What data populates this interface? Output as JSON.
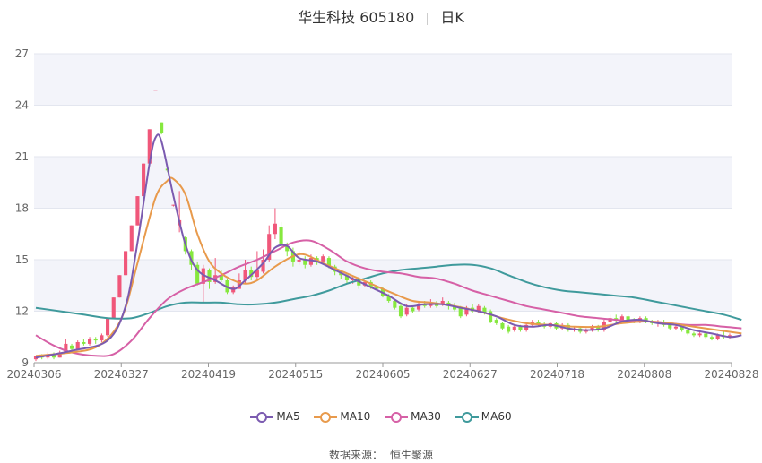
{
  "title": {
    "name": "华生科技 605180",
    "period": "日K"
  },
  "source": {
    "label": "数据来源：",
    "value": "恒生聚源"
  },
  "colors": {
    "up": "#f0577a",
    "down": "#86e83e",
    "ma5": "#7b5bb0",
    "ma10": "#e89a4c",
    "ma30": "#d660a6",
    "ma60": "#3f9a9c",
    "band": "#f3f4fa"
  },
  "chart_data": {
    "type": "candlestick",
    "ylim": [
      9,
      27
    ],
    "yticks": [
      9,
      12,
      15,
      18,
      21,
      24,
      27
    ],
    "xticks": [
      "20240306",
      "20240327",
      "20240419",
      "20240515",
      "20240605",
      "20240627",
      "20240718",
      "20240808",
      "20240828"
    ],
    "legend": [
      "MA5",
      "MA10",
      "MA30",
      "MA60"
    ],
    "candles": [
      [
        9.2,
        9.4,
        9.4,
        9.1
      ],
      [
        9.4,
        9.3,
        9.5,
        9.2
      ],
      [
        9.3,
        9.5,
        9.6,
        9.2
      ],
      [
        9.5,
        9.3,
        9.6,
        9.2
      ],
      [
        9.3,
        9.6,
        9.7,
        9.3
      ],
      [
        9.6,
        10.1,
        10.4,
        9.6
      ],
      [
        10.0,
        9.8,
        10.1,
        9.7
      ],
      [
        9.8,
        10.2,
        10.3,
        9.8
      ],
      [
        10.2,
        10.1,
        10.4,
        10.0
      ],
      [
        10.1,
        10.4,
        10.5,
        10.0
      ],
      [
        10.4,
        10.3,
        10.5,
        10.1
      ],
      [
        10.3,
        10.6,
        10.7,
        10.2
      ],
      [
        10.6,
        11.6,
        11.6,
        10.5
      ],
      [
        11.6,
        12.8,
        12.8,
        11.6
      ],
      [
        12.8,
        14.1,
        14.1,
        12.8
      ],
      [
        14.1,
        15.5,
        15.5,
        14.1
      ],
      [
        15.5,
        17.0,
        17.0,
        15.5
      ],
      [
        17.0,
        18.7,
        18.7,
        17.0
      ],
      [
        18.7,
        20.6,
        20.6,
        18.7
      ],
      [
        20.6,
        22.6,
        22.6,
        20.6
      ],
      [
        24.9,
        24.9,
        24.9,
        24.9
      ],
      [
        23.0,
        22.4,
        23.0,
        22.3
      ],
      [
        20.3,
        20.2,
        20.3,
        20.1
      ],
      [
        18.2,
        18.2,
        18.2,
        18.1
      ],
      [
        17.0,
        17.3,
        19.0,
        16.6
      ],
      [
        16.3,
        15.5,
        16.4,
        15.3
      ],
      [
        15.5,
        14.7,
        15.6,
        14.4
      ],
      [
        14.7,
        13.6,
        14.9,
        13.5
      ],
      [
        13.6,
        14.5,
        14.7,
        12.5
      ],
      [
        14.4,
        13.7,
        14.5,
        13.3
      ],
      [
        13.7,
        14.1,
        15.1,
        13.6
      ],
      [
        14.1,
        13.8,
        14.4,
        13.7
      ],
      [
        13.8,
        13.1,
        13.9,
        13.0
      ],
      [
        13.1,
        13.4,
        13.5,
        13.0
      ],
      [
        13.3,
        13.8,
        14.2,
        13.3
      ],
      [
        13.8,
        14.4,
        15.0,
        13.6
      ],
      [
        14.4,
        14.0,
        14.6,
        13.8
      ],
      [
        14.0,
        14.4,
        15.5,
        13.9
      ],
      [
        14.3,
        15.0,
        15.6,
        14.2
      ],
      [
        15.0,
        16.5,
        17.0,
        14.9
      ],
      [
        16.5,
        17.1,
        18.0,
        16.2
      ],
      [
        16.9,
        15.9,
        17.2,
        15.6
      ],
      [
        15.8,
        15.5,
        16.0,
        15.2
      ],
      [
        15.5,
        14.9,
        15.7,
        14.6
      ],
      [
        14.9,
        15.0,
        15.5,
        14.7
      ],
      [
        15.0,
        14.7,
        15.2,
        14.5
      ],
      [
        14.7,
        15.1,
        15.3,
        14.6
      ],
      [
        15.1,
        14.9,
        15.2,
        14.7
      ],
      [
        14.9,
        15.2,
        15.3,
        14.8
      ],
      [
        15.1,
        14.6,
        15.2,
        14.5
      ],
      [
        14.6,
        14.3,
        14.7,
        14.1
      ],
      [
        14.3,
        14.1,
        14.4,
        13.9
      ],
      [
        14.1,
        13.8,
        14.2,
        13.6
      ],
      [
        13.8,
        13.9,
        14.0,
        13.6
      ],
      [
        13.9,
        13.5,
        14.0,
        13.3
      ],
      [
        13.5,
        13.7,
        13.8,
        13.4
      ],
      [
        13.7,
        13.4,
        13.8,
        13.3
      ],
      [
        13.4,
        13.3,
        13.5,
        13.2
      ],
      [
        13.3,
        12.9,
        13.4,
        12.8
      ],
      [
        12.9,
        12.6,
        13.0,
        12.5
      ],
      [
        12.6,
        12.2,
        12.7,
        12.1
      ],
      [
        12.3,
        11.7,
        12.4,
        11.6
      ],
      [
        11.8,
        12.2,
        12.4,
        11.7
      ],
      [
        12.2,
        12.0,
        12.3,
        11.9
      ],
      [
        12.1,
        12.4,
        12.6,
        12.0
      ],
      [
        12.4,
        12.3,
        12.6,
        12.2
      ],
      [
        12.3,
        12.5,
        12.7,
        12.2
      ],
      [
        12.5,
        12.3,
        12.6,
        12.2
      ],
      [
        12.4,
        12.6,
        12.8,
        12.3
      ],
      [
        12.5,
        12.3,
        12.6,
        12.1
      ],
      [
        12.3,
        12.1,
        12.5,
        12.0
      ],
      [
        12.2,
        11.7,
        12.3,
        11.6
      ],
      [
        11.8,
        12.2,
        12.3,
        11.7
      ],
      [
        12.2,
        12.0,
        12.4,
        11.9
      ],
      [
        12.0,
        12.3,
        12.4,
        11.9
      ],
      [
        12.2,
        11.9,
        12.3,
        11.8
      ],
      [
        12.0,
        11.4,
        12.1,
        11.3
      ],
      [
        11.5,
        11.3,
        11.6,
        11.2
      ],
      [
        11.3,
        11.0,
        11.4,
        10.9
      ],
      [
        11.1,
        10.8,
        11.2,
        10.7
      ],
      [
        10.9,
        11.1,
        11.2,
        10.8
      ],
      [
        11.1,
        10.9,
        11.2,
        10.8
      ],
      [
        10.9,
        11.2,
        11.4,
        10.8
      ],
      [
        11.2,
        11.4,
        11.5,
        11.1
      ],
      [
        11.4,
        11.2,
        11.5,
        11.1
      ],
      [
        11.2,
        11.1,
        11.4,
        11.0
      ],
      [
        11.1,
        11.3,
        11.4,
        11.0
      ],
      [
        11.3,
        11.0,
        11.4,
        10.9
      ],
      [
        11.0,
        11.2,
        11.3,
        10.9
      ],
      [
        11.2,
        10.9,
        11.3,
        10.8
      ],
      [
        10.9,
        11.0,
        11.1,
        10.8
      ],
      [
        11.0,
        10.8,
        11.1,
        10.7
      ],
      [
        10.8,
        10.9,
        11.0,
        10.7
      ],
      [
        10.9,
        11.1,
        11.2,
        10.8
      ],
      [
        11.1,
        10.9,
        11.2,
        10.8
      ],
      [
        10.9,
        11.4,
        11.5,
        10.8
      ],
      [
        11.4,
        11.6,
        11.8,
        11.3
      ],
      [
        11.6,
        11.5,
        11.8,
        11.3
      ],
      [
        11.5,
        11.7,
        11.8,
        11.4
      ],
      [
        11.7,
        11.5,
        11.8,
        11.4
      ],
      [
        11.5,
        11.4,
        11.6,
        11.3
      ],
      [
        11.4,
        11.6,
        11.7,
        11.3
      ],
      [
        11.6,
        11.4,
        11.7,
        11.3
      ],
      [
        11.4,
        11.3,
        11.5,
        11.2
      ],
      [
        11.3,
        11.4,
        11.5,
        11.1
      ],
      [
        11.4,
        11.2,
        11.5,
        11.1
      ],
      [
        11.2,
        11.0,
        11.3,
        10.9
      ],
      [
        11.0,
        11.1,
        11.2,
        10.9
      ],
      [
        11.1,
        10.9,
        11.2,
        10.8
      ],
      [
        10.9,
        10.7,
        11.0,
        10.6
      ],
      [
        10.7,
        10.6,
        10.8,
        10.5
      ],
      [
        10.6,
        10.7,
        10.9,
        10.5
      ],
      [
        10.7,
        10.5,
        10.8,
        10.4
      ],
      [
        10.5,
        10.4,
        10.6,
        10.3
      ],
      [
        10.4,
        10.6,
        10.7,
        10.3
      ],
      [
        10.6,
        10.5,
        10.8,
        10.4
      ],
      [
        10.5,
        10.6,
        10.7,
        10.4
      ]
    ],
    "ma5": [
      [
        0,
        9.3
      ],
      [
        6,
        9.7
      ],
      [
        12,
        10.3
      ],
      [
        15,
        12.3
      ],
      [
        17,
        16.0
      ],
      [
        19,
        20.6
      ],
      [
        20,
        22.1
      ],
      [
        21,
        21.9
      ],
      [
        23,
        18.7
      ],
      [
        25,
        15.9
      ],
      [
        27,
        14.4
      ],
      [
        30,
        13.8
      ],
      [
        33,
        13.3
      ],
      [
        35,
        13.8
      ],
      [
        38,
        14.8
      ],
      [
        40,
        15.7
      ],
      [
        42,
        15.8
      ],
      [
        44,
        15.1
      ],
      [
        47,
        14.9
      ],
      [
        50,
        14.4
      ],
      [
        53,
        13.9
      ],
      [
        56,
        13.4
      ],
      [
        59,
        12.9
      ],
      [
        62,
        12.3
      ],
      [
        65,
        12.4
      ],
      [
        68,
        12.4
      ],
      [
        71,
        12.2
      ],
      [
        74,
        12.0
      ],
      [
        77,
        11.7
      ],
      [
        80,
        11.2
      ],
      [
        83,
        11.1
      ],
      [
        86,
        11.2
      ],
      [
        89,
        11.0
      ],
      [
        92,
        10.9
      ],
      [
        95,
        11.0
      ],
      [
        98,
        11.4
      ],
      [
        101,
        11.5
      ],
      [
        104,
        11.3
      ],
      [
        107,
        11.2
      ],
      [
        110,
        10.9
      ],
      [
        113,
        10.7
      ],
      [
        116,
        10.5
      ],
      [
        118,
        10.6
      ]
    ],
    "ma10": [
      [
        0,
        9.4
      ],
      [
        6,
        9.6
      ],
      [
        10,
        9.9
      ],
      [
        13,
        10.8
      ],
      [
        15,
        12.2
      ],
      [
        17,
        14.8
      ],
      [
        20,
        18.6
      ],
      [
        22,
        19.6
      ],
      [
        23,
        19.7
      ],
      [
        25,
        18.8
      ],
      [
        27,
        16.5
      ],
      [
        29,
        14.9
      ],
      [
        31,
        14.2
      ],
      [
        33,
        13.8
      ],
      [
        35,
        13.6
      ],
      [
        37,
        13.8
      ],
      [
        40,
        14.6
      ],
      [
        43,
        15.2
      ],
      [
        45,
        15.3
      ],
      [
        48,
        14.8
      ],
      [
        52,
        14.2
      ],
      [
        56,
        13.6
      ],
      [
        60,
        13.0
      ],
      [
        63,
        12.6
      ],
      [
        66,
        12.5
      ],
      [
        70,
        12.3
      ],
      [
        74,
        12.0
      ],
      [
        78,
        11.6
      ],
      [
        82,
        11.3
      ],
      [
        86,
        11.2
      ],
      [
        90,
        11.1
      ],
      [
        94,
        11.1
      ],
      [
        98,
        11.3
      ],
      [
        102,
        11.4
      ],
      [
        106,
        11.3
      ],
      [
        110,
        11.1
      ],
      [
        114,
        10.9
      ],
      [
        118,
        10.7
      ]
    ],
    "ma30": [
      [
        0,
        10.6
      ],
      [
        3,
        10.0
      ],
      [
        6,
        9.6
      ],
      [
        10,
        9.4
      ],
      [
        13,
        9.5
      ],
      [
        16,
        10.3
      ],
      [
        19,
        11.6
      ],
      [
        22,
        12.7
      ],
      [
        25,
        13.3
      ],
      [
        28,
        13.7
      ],
      [
        31,
        14.1
      ],
      [
        34,
        14.6
      ],
      [
        37,
        15.0
      ],
      [
        40,
        15.5
      ],
      [
        43,
        16.0
      ],
      [
        46,
        16.1
      ],
      [
        49,
        15.6
      ],
      [
        52,
        14.9
      ],
      [
        55,
        14.5
      ],
      [
        58,
        14.3
      ],
      [
        61,
        14.2
      ],
      [
        64,
        14.0
      ],
      [
        67,
        13.9
      ],
      [
        70,
        13.6
      ],
      [
        73,
        13.2
      ],
      [
        76,
        12.9
      ],
      [
        79,
        12.6
      ],
      [
        82,
        12.3
      ],
      [
        85,
        12.1
      ],
      [
        88,
        11.9
      ],
      [
        91,
        11.7
      ],
      [
        94,
        11.6
      ],
      [
        97,
        11.5
      ],
      [
        100,
        11.4
      ],
      [
        103,
        11.4
      ],
      [
        106,
        11.3
      ],
      [
        109,
        11.2
      ],
      [
        112,
        11.2
      ],
      [
        115,
        11.1
      ],
      [
        118,
        11.0
      ]
    ],
    "ma60": [
      [
        0,
        12.2
      ],
      [
        4,
        12.0
      ],
      [
        8,
        11.8
      ],
      [
        12,
        11.6
      ],
      [
        16,
        11.6
      ],
      [
        19,
        11.9
      ],
      [
        22,
        12.3
      ],
      [
        25,
        12.5
      ],
      [
        28,
        12.5
      ],
      [
        31,
        12.5
      ],
      [
        34,
        12.4
      ],
      [
        37,
        12.4
      ],
      [
        40,
        12.5
      ],
      [
        43,
        12.7
      ],
      [
        46,
        12.9
      ],
      [
        49,
        13.2
      ],
      [
        52,
        13.6
      ],
      [
        55,
        13.9
      ],
      [
        58,
        14.2
      ],
      [
        61,
        14.4
      ],
      [
        64,
        14.5
      ],
      [
        67,
        14.6
      ],
      [
        70,
        14.7
      ],
      [
        73,
        14.7
      ],
      [
        76,
        14.5
      ],
      [
        79,
        14.1
      ],
      [
        82,
        13.7
      ],
      [
        85,
        13.4
      ],
      [
        88,
        13.2
      ],
      [
        91,
        13.1
      ],
      [
        94,
        13.0
      ],
      [
        97,
        12.9
      ],
      [
        100,
        12.8
      ],
      [
        103,
        12.6
      ],
      [
        106,
        12.4
      ],
      [
        109,
        12.2
      ],
      [
        112,
        12.0
      ],
      [
        115,
        11.8
      ],
      [
        118,
        11.5
      ]
    ]
  }
}
